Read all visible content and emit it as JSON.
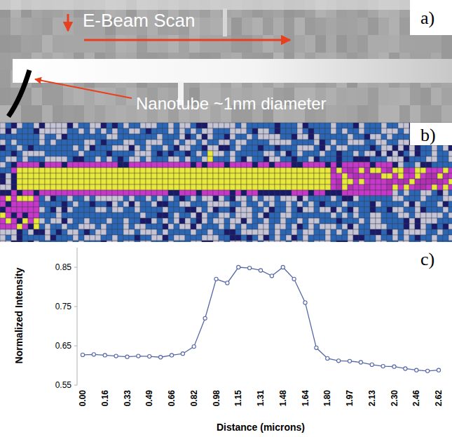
{
  "panel_a": {
    "panel_label": "a)",
    "scan_text": "E-Beam Scan",
    "nanotube_text": "Nanotube ~1nm diameter"
  },
  "panel_b": {
    "panel_label": "b)"
  },
  "chart_data": {
    "type": "line",
    "panel_label": "c)",
    "x_label": "Distance (microns)",
    "y_label": "Normalized Intensity",
    "categories": [
      "0.00",
      null,
      "0.16",
      null,
      "0.33",
      null,
      "0.49",
      null,
      "0.66",
      null,
      "0.82",
      null,
      "0.98",
      null,
      "1.15",
      null,
      "1.31",
      null,
      "1.48",
      null,
      "1.64",
      null,
      "1.80",
      null,
      "1.97",
      null,
      "2.13",
      null,
      "2.30",
      null,
      "2.46",
      null,
      "2.62"
    ],
    "values": [
      0.627,
      0.628,
      0.626,
      0.624,
      0.622,
      0.624,
      0.623,
      0.621,
      0.626,
      0.63,
      0.648,
      0.72,
      0.82,
      0.81,
      0.85,
      0.848,
      0.842,
      0.828,
      0.85,
      0.82,
      0.76,
      0.645,
      0.618,
      0.612,
      0.611,
      0.608,
      0.602,
      0.598,
      0.597,
      0.592,
      0.588,
      0.586,
      0.588
    ],
    "color": "#5566a6",
    "marker": "circle",
    "grid": false,
    "ylim": [
      0.55,
      0.9
    ],
    "yticks": [
      0.55,
      0.65,
      0.75,
      0.85
    ]
  }
}
